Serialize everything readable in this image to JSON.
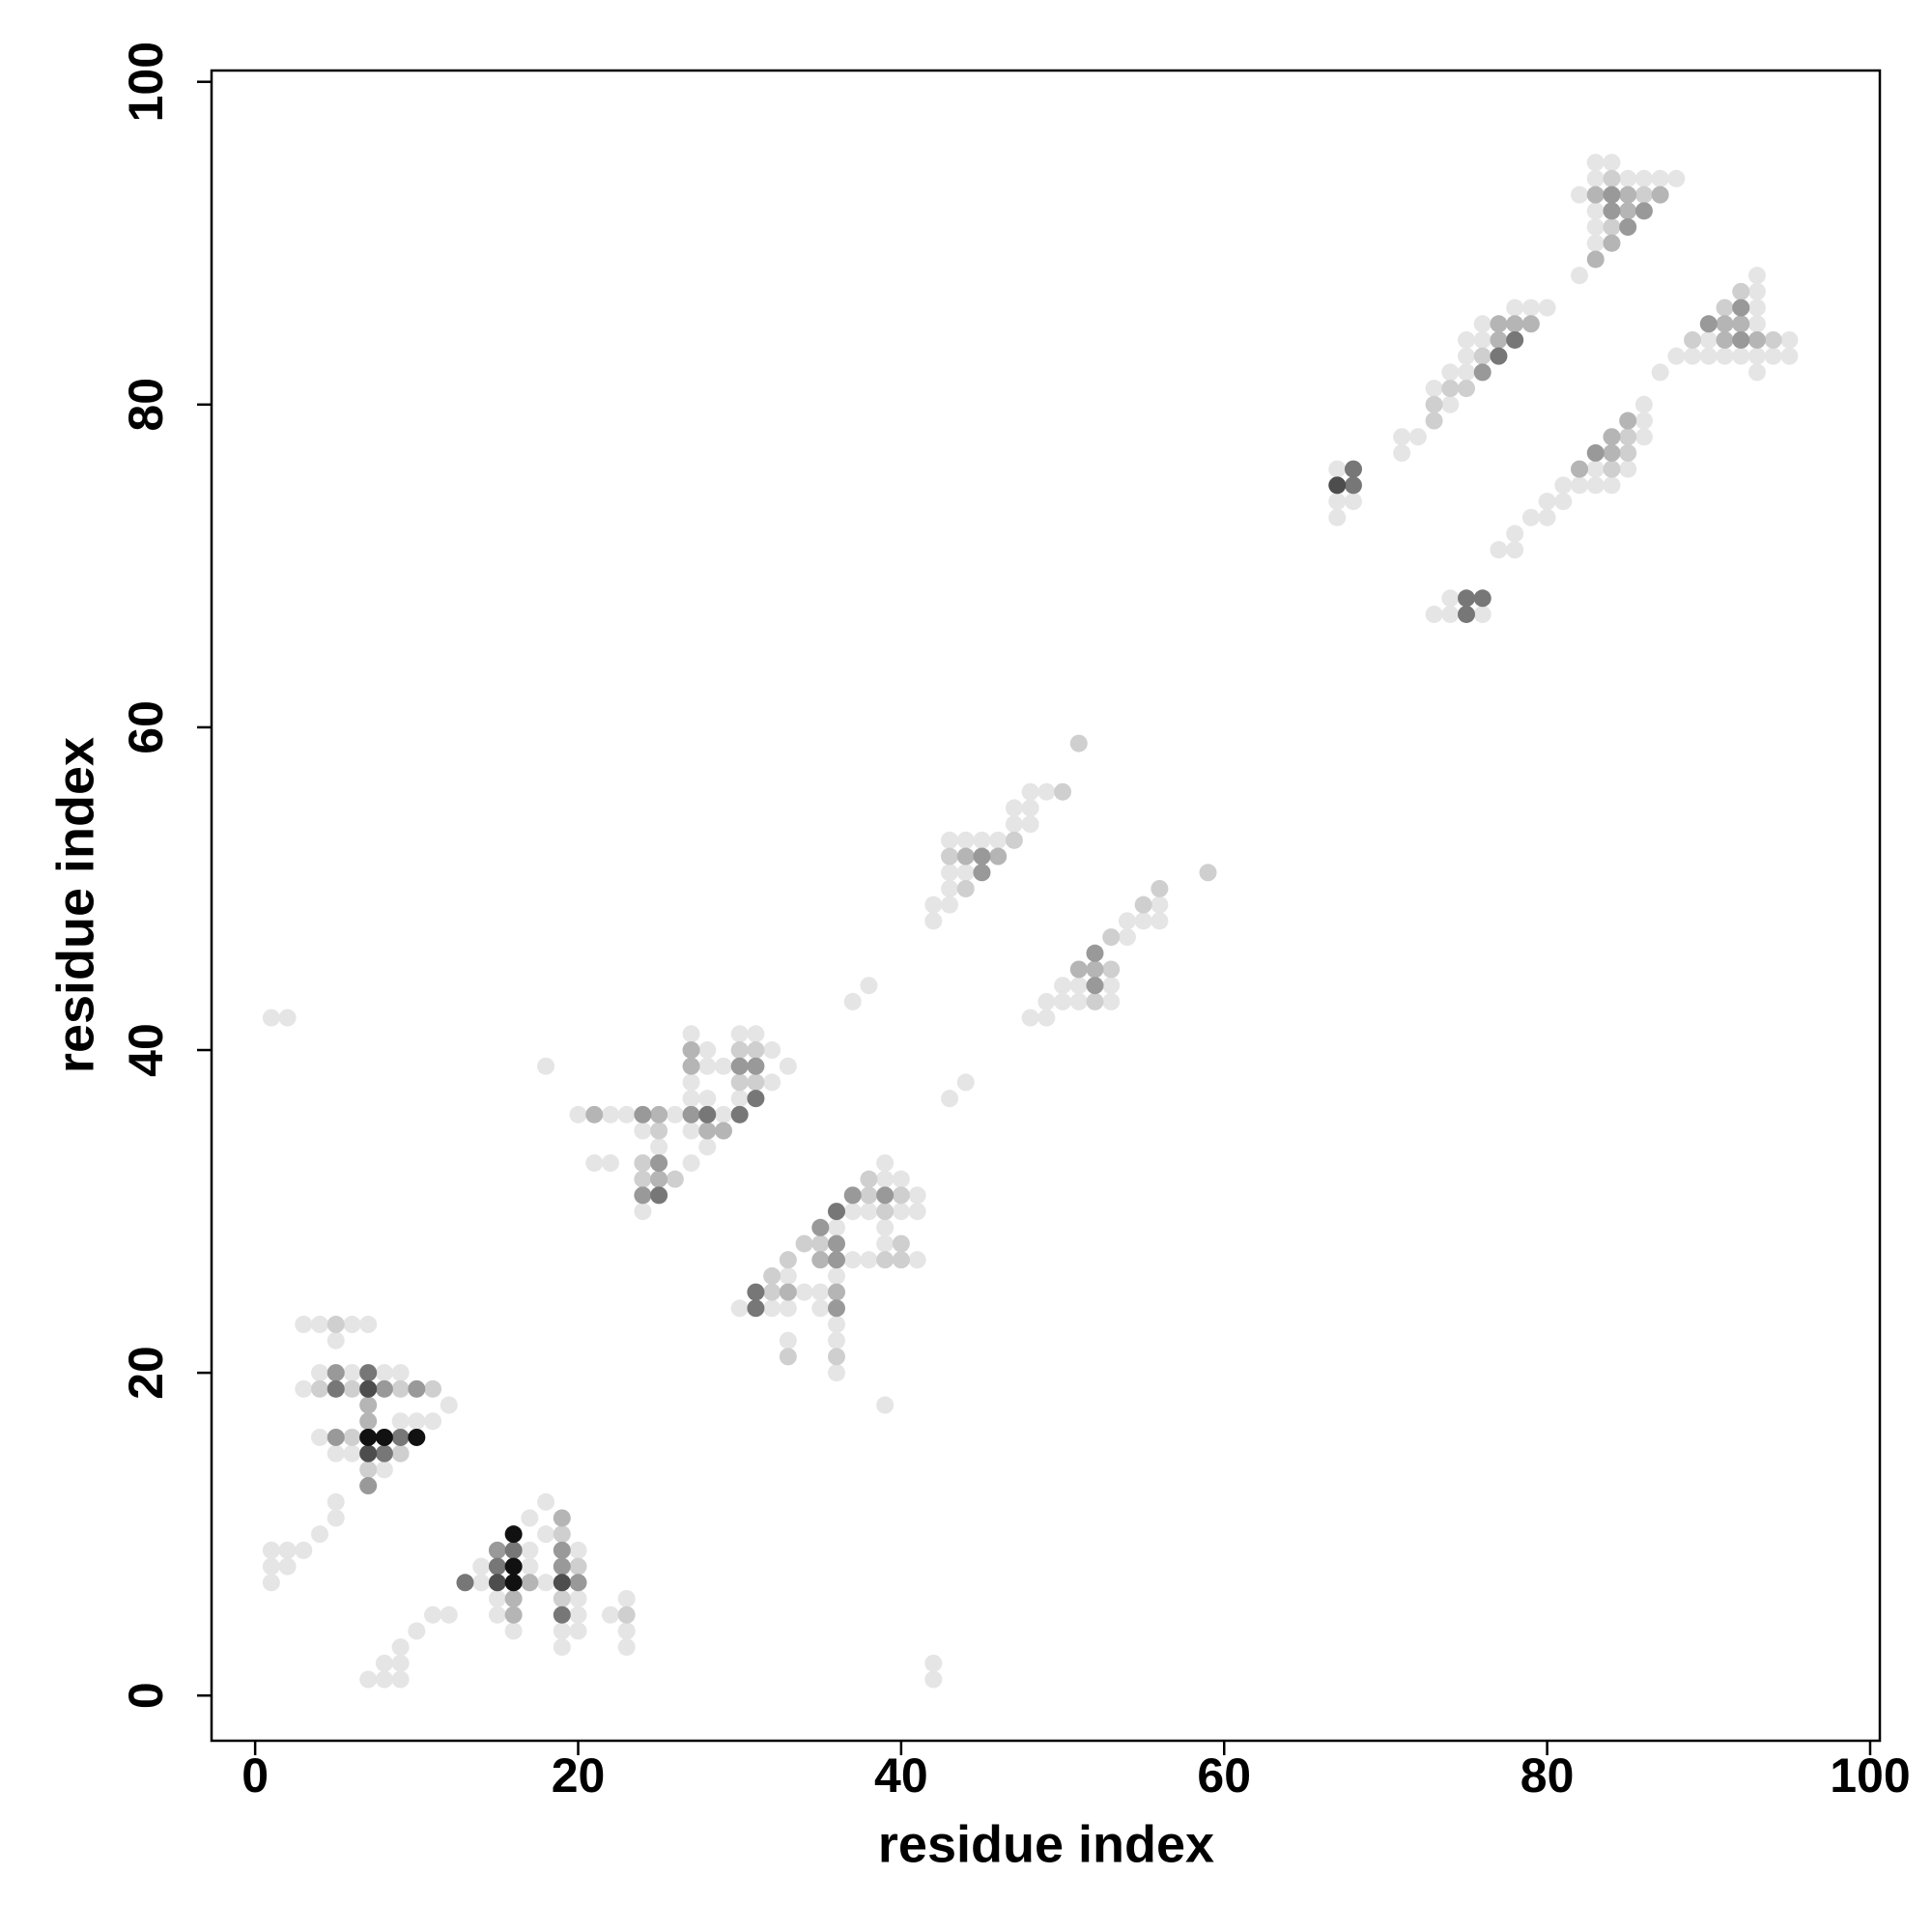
{
  "chart_data": {
    "type": "scatter",
    "x_label": "residue index",
    "y_label": "residue index",
    "xlim": [
      -2.7,
      100.6
    ],
    "ylim": [
      -2.8,
      100.7
    ],
    "xticks": [
      0,
      20,
      40,
      60,
      80,
      100
    ],
    "yticks": [
      0,
      20,
      40,
      60,
      80,
      100
    ],
    "grid": false,
    "series": [
      {
        "color": "#e5e5e5",
        "x": [
          3,
          4,
          6,
          7,
          5,
          4,
          6,
          8,
          9,
          3,
          12,
          9,
          10,
          11,
          4,
          5,
          6,
          8,
          5,
          5,
          4,
          1,
          2,
          3,
          1,
          2,
          1,
          18,
          17,
          18,
          17,
          20,
          14,
          17,
          14,
          18,
          15,
          20,
          23,
          11,
          12,
          15,
          20,
          22,
          10,
          16,
          19,
          20,
          23,
          9,
          19,
          23,
          8,
          9,
          7,
          8,
          9,
          1,
          2,
          18,
          39,
          42,
          42,
          27,
          30,
          31,
          28,
          32,
          28,
          29,
          33,
          27,
          32,
          27,
          28,
          30,
          20,
          22,
          23,
          26,
          29,
          24,
          27,
          25,
          28,
          21,
          22,
          27,
          24,
          39,
          39,
          40,
          41,
          37,
          38,
          40,
          41,
          36,
          39,
          39,
          37,
          38,
          41,
          33,
          36,
          34,
          35,
          30,
          32,
          33,
          35,
          36,
          33,
          36,
          36,
          37,
          38,
          43,
          44,
          48,
          49,
          47,
          48,
          47,
          48,
          43,
          44,
          45,
          46,
          43,
          44,
          43,
          42,
          43,
          42,
          56,
          54,
          55,
          56,
          54,
          50,
          51,
          53,
          49,
          50,
          51,
          53,
          48,
          49,
          67,
          67,
          68,
          67,
          74,
          73,
          74,
          76,
          78,
          79,
          80,
          76,
          75,
          76,
          75,
          74,
          75,
          73,
          74,
          71,
          72,
          71,
          86,
          86,
          86,
          83,
          85,
          81,
          82,
          83,
          84,
          80,
          81,
          79,
          80,
          78,
          77,
          78,
          83,
          84,
          83,
          85,
          86,
          87,
          88,
          82,
          83,
          83,
          83,
          82,
          93,
          93,
          93,
          93,
          90,
          95,
          88,
          89,
          90,
          91,
          92,
          93,
          94,
          95,
          87,
          93
        ],
        "values": [
          23,
          23,
          23,
          23,
          22,
          20,
          20,
          20,
          20,
          19,
          18,
          17,
          17,
          17,
          16,
          15,
          15,
          14,
          12,
          11,
          10,
          9,
          9,
          9,
          8,
          8,
          7,
          12,
          11,
          10,
          9,
          9,
          8,
          8,
          7,
          7,
          6,
          6,
          6,
          5,
          5,
          5,
          5,
          5,
          4,
          4,
          4,
          4,
          4,
          3,
          3,
          3,
          2,
          2,
          1,
          1,
          1,
          42,
          42,
          39,
          18,
          1,
          2,
          41,
          41,
          41,
          40,
          40,
          39,
          39,
          39,
          38,
          38,
          37,
          37,
          37,
          36,
          36,
          36,
          36,
          36,
          35,
          35,
          34,
          34,
          33,
          33,
          33,
          30,
          33,
          32,
          32,
          31,
          30,
          30,
          30,
          30,
          29,
          29,
          28,
          27,
          27,
          27,
          26,
          26,
          25,
          25,
          24,
          24,
          24,
          24,
          23,
          22,
          22,
          20,
          43,
          44,
          37,
          38,
          56,
          56,
          55,
          55,
          54,
          54,
          53,
          53,
          53,
          53,
          51,
          51,
          50,
          49,
          49,
          48,
          49,
          48,
          48,
          48,
          47,
          44,
          44,
          44,
          43,
          43,
          43,
          43,
          42,
          42,
          76,
          74,
          74,
          73,
          68,
          67,
          67,
          67,
          86,
          86,
          86,
          85,
          84,
          84,
          83,
          82,
          82,
          81,
          80,
          78,
          78,
          77,
          80,
          79,
          78,
          76,
          76,
          75,
          75,
          75,
          75,
          74,
          74,
          73,
          73,
          72,
          71,
          71,
          95,
          95,
          94,
          94,
          94,
          94,
          94,
          93,
          92,
          91,
          90,
          88,
          88,
          87,
          86,
          85,
          84,
          84,
          83,
          83,
          83,
          83,
          83,
          83,
          83,
          83,
          82,
          82
        ]
      },
      {
        "color": "#cfcfcf",
        "x": [
          5,
          4,
          6,
          9,
          11,
          6,
          9,
          7,
          19,
          20,
          19,
          23,
          30,
          31,
          30,
          31,
          25,
          24,
          24,
          26,
          38,
          38,
          40,
          39,
          34,
          35,
          40,
          33,
          39,
          40,
          32,
          32,
          33,
          36,
          51,
          50,
          47,
          43,
          44,
          59,
          56,
          55,
          53,
          53,
          52,
          76,
          74,
          75,
          73,
          73,
          85,
          85,
          84,
          84,
          86,
          84,
          92,
          91,
          89,
          94
        ],
        "values": [
          23,
          19,
          19,
          19,
          19,
          16,
          15,
          14,
          10,
          8,
          6,
          5,
          40,
          40,
          38,
          38,
          35,
          33,
          32,
          32,
          32,
          31,
          31,
          30,
          28,
          28,
          28,
          27,
          27,
          27,
          26,
          25,
          21,
          21,
          59,
          56,
          53,
          52,
          50,
          51,
          50,
          49,
          47,
          45,
          43,
          83,
          81,
          81,
          80,
          79,
          78,
          77,
          76,
          94,
          93,
          91,
          87,
          86,
          84,
          84
        ]
      },
      {
        "color": "#b5b5b5",
        "x": [
          7,
          7,
          19,
          17,
          16,
          16,
          27,
          27,
          21,
          25,
          28,
          29,
          25,
          35,
          33,
          36,
          44,
          46,
          51,
          52,
          77,
          78,
          79,
          77,
          85,
          84,
          84,
          82,
          83,
          85,
          87,
          85,
          84,
          83,
          91,
          92,
          91,
          93
        ],
        "values": [
          18,
          17,
          11,
          7,
          6,
          5,
          40,
          39,
          36,
          36,
          35,
          35,
          32,
          27,
          25,
          25,
          52,
          52,
          45,
          45,
          85,
          85,
          85,
          84,
          79,
          78,
          77,
          76,
          93,
          93,
          93,
          92,
          90,
          89,
          85,
          85,
          84,
          84
        ]
      },
      {
        "color": "#999999",
        "x": [
          5,
          8,
          10,
          5,
          7,
          15,
          19,
          19,
          20,
          30,
          31,
          24,
          27,
          25,
          24,
          37,
          39,
          35,
          36,
          36,
          36,
          45,
          45,
          52,
          52,
          76,
          83,
          84,
          84,
          86,
          85,
          92,
          90,
          92
        ],
        "values": [
          20,
          19,
          19,
          16,
          13,
          9,
          9,
          8,
          7,
          39,
          39,
          36,
          36,
          33,
          31,
          31,
          31,
          29,
          28,
          27,
          24,
          52,
          51,
          46,
          44,
          82,
          77,
          93,
          92,
          92,
          91,
          86,
          85,
          84
        ]
      },
      {
        "color": "#777777",
        "x": [
          7,
          5,
          9,
          8,
          16,
          15,
          13,
          19,
          31,
          28,
          30,
          25,
          36,
          31,
          31,
          68,
          68,
          75,
          76,
          75,
          78,
          77
        ],
        "values": [
          20,
          19,
          16,
          15,
          9,
          8,
          7,
          5,
          37,
          36,
          36,
          31,
          30,
          25,
          24,
          76,
          75,
          68,
          68,
          67,
          84,
          83
        ]
      },
      {
        "color": "#4d4d4d",
        "x": [
          7,
          7,
          15,
          19,
          67
        ],
        "values": [
          19,
          15,
          7,
          7,
          75
        ]
      },
      {
        "color": "#111111",
        "x": [
          7,
          8,
          10,
          16,
          16,
          16
        ],
        "values": [
          16,
          16,
          16,
          10,
          8,
          7
        ]
      }
    ]
  }
}
